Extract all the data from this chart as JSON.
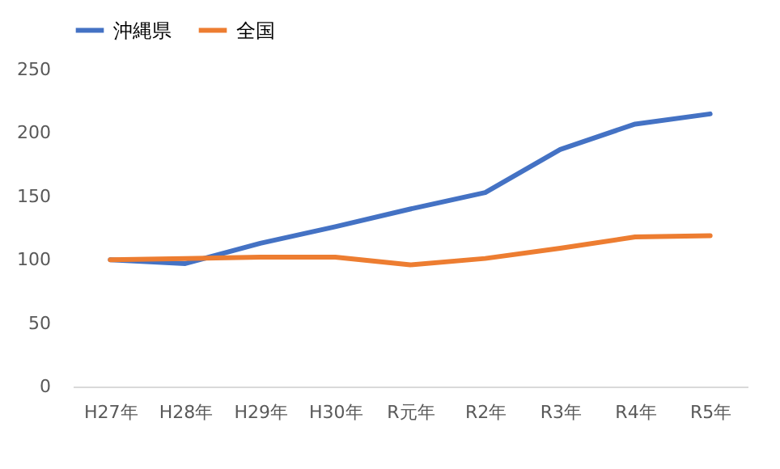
{
  "chart_data": {
    "type": "line",
    "categories": [
      "H27年",
      "H28年",
      "H29年",
      "H30年",
      "R元年",
      "R2年",
      "R3年",
      "R4年",
      "R5年"
    ],
    "series": [
      {
        "name": "沖縄県",
        "color": "#4472c4",
        "values": [
          100,
          97,
          113,
          126,
          140,
          153,
          187,
          207,
          215
        ]
      },
      {
        "name": "全国",
        "color": "#ed7d31",
        "values": [
          100,
          101,
          102,
          102,
          96,
          101,
          109,
          118,
          119
        ]
      }
    ],
    "ylim": [
      0,
      250
    ],
    "yticks": [
      0,
      50,
      100,
      150,
      200,
      250
    ],
    "grid": false,
    "legend": "top",
    "marker": "none",
    "line_style": "solid"
  }
}
